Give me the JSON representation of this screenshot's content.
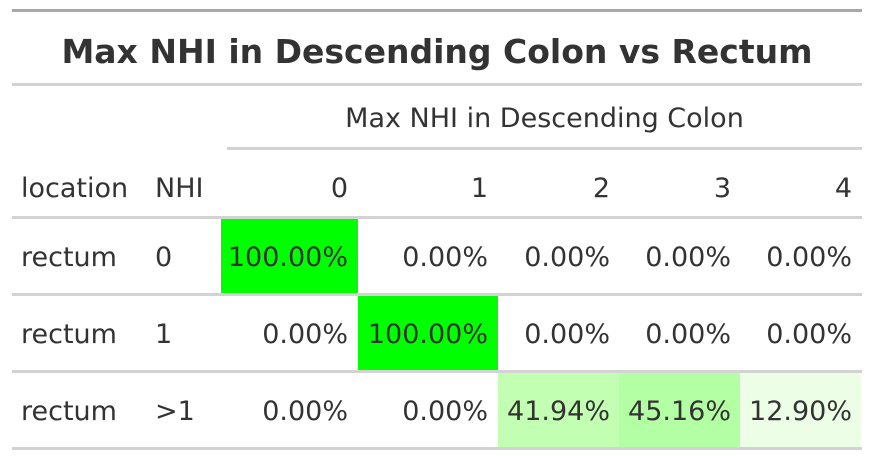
{
  "table": {
    "title": "Max NHI in Descending Colon vs Rectum",
    "spanner": "Max NHI in Descending Colon",
    "stub_headers": [
      "location",
      "NHI"
    ],
    "columns": [
      "0",
      "1",
      "2",
      "3",
      "4"
    ],
    "rows": [
      {
        "location": "rectum",
        "nhi": "0",
        "values": [
          "100.00%",
          "0.00%",
          "0.00%",
          "0.00%",
          "0.00%"
        ],
        "fills": [
          "#00ff00",
          "#ffffff",
          "#ffffff",
          "#ffffff",
          "#ffffff"
        ]
      },
      {
        "location": "rectum",
        "nhi": "1",
        "values": [
          "0.00%",
          "100.00%",
          "0.00%",
          "0.00%",
          "0.00%"
        ],
        "fills": [
          "#ffffff",
          "#00ff00",
          "#ffffff",
          "#ffffff",
          "#ffffff"
        ]
      },
      {
        "location": "rectum",
        "nhi": ">1",
        "values": [
          "0.00%",
          "0.00%",
          "41.94%",
          "45.16%",
          "12.90%"
        ],
        "fills": [
          "#ffffff",
          "#ffffff",
          "#c2ffb3",
          "#b3ffa3",
          "#ecffe6"
        ]
      }
    ]
  }
}
